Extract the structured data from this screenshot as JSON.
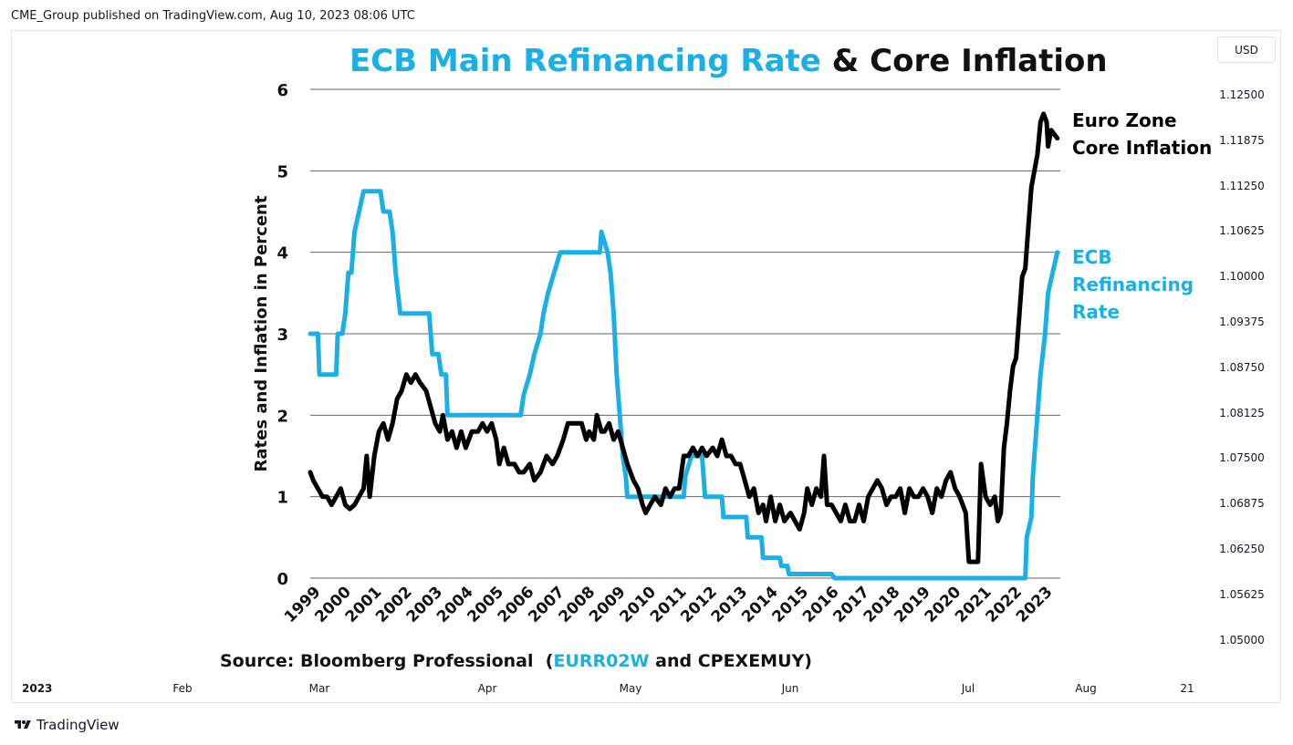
{
  "header": {
    "published_text": "CME_Group published on TradingView.com, Aug 10, 2023 08:06 UTC"
  },
  "currency_button": {
    "label": "USD"
  },
  "price_axis": {
    "labels": [
      "1.12500",
      "1.11875",
      "1.11250",
      "1.10625",
      "1.10000",
      "1.09375",
      "1.08750",
      "1.08125",
      "1.07500",
      "1.06875",
      "1.06250",
      "1.05625",
      "1.05000"
    ]
  },
  "time_axis": {
    "labels": [
      "2023",
      "Feb",
      "Mar",
      "Apr",
      "May",
      "Jun",
      "Jul",
      "Aug",
      "21"
    ]
  },
  "footer": {
    "brand": "TradingView"
  },
  "colors": {
    "ecb": "#1ab0e6",
    "core": "#000000",
    "grid": "#666666"
  },
  "chart_data": {
    "type": "line",
    "title_parts": [
      {
        "text": "ECB Main Refinancing Rate",
        "color": "#1ab0e6"
      },
      {
        "text": " & Core Inflation",
        "color": "#111111"
      }
    ],
    "ylabel": "Rates and Inflation in Percent",
    "ylim": [
      0,
      6
    ],
    "yticks": [
      "0",
      "1",
      "2",
      "3",
      "4",
      "5",
      "6"
    ],
    "x_tick_labels": [
      "1999",
      "2000",
      "2001",
      "2002",
      "2003",
      "2004",
      "2005",
      "2006",
      "2007",
      "2008",
      "2009",
      "2010",
      "2011",
      "2012",
      "2013",
      "2014",
      "2015",
      "2016",
      "2017",
      "2018",
      "2019",
      "2020",
      "2021",
      "2022",
      "2023"
    ],
    "xlim": [
      1999,
      2023.6
    ],
    "grid": "horizontal",
    "source_parts": [
      {
        "text": "Source: Bloomberg Professional  (",
        "color": "#111111"
      },
      {
        "text": "EURR02W",
        "color": "#1ab0e6"
      },
      {
        "text": " and CPEXEMUY)",
        "color": "#111111"
      }
    ],
    "series": [
      {
        "name_lines": [
          "ECB",
          "Refinancing",
          "Rate"
        ],
        "color": "#1ab0e6",
        "points": [
          [
            1999.0,
            3.0
          ],
          [
            1999.25,
            3.0
          ],
          [
            1999.3,
            2.5
          ],
          [
            1999.85,
            2.5
          ],
          [
            1999.9,
            3.0
          ],
          [
            2000.05,
            3.0
          ],
          [
            2000.15,
            3.25
          ],
          [
            2000.25,
            3.75
          ],
          [
            2000.35,
            3.75
          ],
          [
            2000.45,
            4.25
          ],
          [
            2000.6,
            4.5
          ],
          [
            2000.75,
            4.75
          ],
          [
            2001.3,
            4.75
          ],
          [
            2001.4,
            4.5
          ],
          [
            2001.6,
            4.5
          ],
          [
            2001.7,
            4.25
          ],
          [
            2001.8,
            3.75
          ],
          [
            2001.95,
            3.25
          ],
          [
            2002.9,
            3.25
          ],
          [
            2003.0,
            2.75
          ],
          [
            2003.2,
            2.75
          ],
          [
            2003.3,
            2.5
          ],
          [
            2003.45,
            2.5
          ],
          [
            2003.5,
            2.0
          ],
          [
            2005.9,
            2.0
          ],
          [
            2006.0,
            2.25
          ],
          [
            2006.2,
            2.5
          ],
          [
            2006.35,
            2.75
          ],
          [
            2006.55,
            3.0
          ],
          [
            2006.65,
            3.25
          ],
          [
            2006.8,
            3.5
          ],
          [
            2007.0,
            3.75
          ],
          [
            2007.2,
            4.0
          ],
          [
            2008.5,
            4.0
          ],
          [
            2008.55,
            4.25
          ],
          [
            2008.75,
            4.0
          ],
          [
            2008.85,
            3.75
          ],
          [
            2008.95,
            3.25
          ],
          [
            2009.05,
            2.5
          ],
          [
            2009.15,
            2.0
          ],
          [
            2009.25,
            1.5
          ],
          [
            2009.35,
            1.25
          ],
          [
            2009.4,
            1.0
          ],
          [
            2011.25,
            1.0
          ],
          [
            2011.3,
            1.25
          ],
          [
            2011.5,
            1.5
          ],
          [
            2011.85,
            1.5
          ],
          [
            2011.9,
            1.25
          ],
          [
            2011.95,
            1.0
          ],
          [
            2012.5,
            1.0
          ],
          [
            2012.55,
            0.75
          ],
          [
            2013.3,
            0.75
          ],
          [
            2013.35,
            0.5
          ],
          [
            2013.8,
            0.5
          ],
          [
            2013.85,
            0.25
          ],
          [
            2014.4,
            0.25
          ],
          [
            2014.45,
            0.15
          ],
          [
            2014.65,
            0.15
          ],
          [
            2014.7,
            0.05
          ],
          [
            2016.1,
            0.05
          ],
          [
            2016.2,
            0.0
          ],
          [
            2022.45,
            0.0
          ],
          [
            2022.5,
            0.5
          ],
          [
            2022.65,
            0.75
          ],
          [
            2022.7,
            1.25
          ],
          [
            2022.85,
            2.0
          ],
          [
            2022.95,
            2.5
          ],
          [
            2023.1,
            3.0
          ],
          [
            2023.2,
            3.5
          ],
          [
            2023.35,
            3.75
          ],
          [
            2023.5,
            4.0
          ]
        ]
      },
      {
        "name_lines": [
          "Euro Zone",
          "Core Inflation"
        ],
        "color": "#000000",
        "points": [
          [
            1999.0,
            1.3
          ],
          [
            1999.1,
            1.2
          ],
          [
            1999.25,
            1.1
          ],
          [
            1999.4,
            1.0
          ],
          [
            1999.55,
            1.0
          ],
          [
            1999.7,
            0.9
          ],
          [
            1999.85,
            1.0
          ],
          [
            2000.0,
            1.1
          ],
          [
            2000.15,
            0.9
          ],
          [
            2000.3,
            0.85
          ],
          [
            2000.45,
            0.9
          ],
          [
            2000.6,
            1.0
          ],
          [
            2000.75,
            1.1
          ],
          [
            2000.85,
            1.5
          ],
          [
            2000.95,
            1.0
          ],
          [
            2001.1,
            1.5
          ],
          [
            2001.25,
            1.8
          ],
          [
            2001.4,
            1.9
          ],
          [
            2001.55,
            1.7
          ],
          [
            2001.7,
            1.9
          ],
          [
            2001.85,
            2.2
          ],
          [
            2002.0,
            2.3
          ],
          [
            2002.15,
            2.5
          ],
          [
            2002.3,
            2.4
          ],
          [
            2002.45,
            2.5
          ],
          [
            2002.6,
            2.4
          ],
          [
            2002.8,
            2.3
          ],
          [
            2002.95,
            2.1
          ],
          [
            2003.1,
            1.9
          ],
          [
            2003.25,
            1.8
          ],
          [
            2003.35,
            2.0
          ],
          [
            2003.5,
            1.7
          ],
          [
            2003.65,
            1.8
          ],
          [
            2003.8,
            1.6
          ],
          [
            2003.95,
            1.8
          ],
          [
            2004.1,
            1.6
          ],
          [
            2004.3,
            1.8
          ],
          [
            2004.5,
            1.8
          ],
          [
            2004.65,
            1.9
          ],
          [
            2004.8,
            1.8
          ],
          [
            2004.95,
            1.9
          ],
          [
            2005.1,
            1.7
          ],
          [
            2005.2,
            1.4
          ],
          [
            2005.35,
            1.6
          ],
          [
            2005.5,
            1.4
          ],
          [
            2005.7,
            1.4
          ],
          [
            2005.85,
            1.3
          ],
          [
            2006.0,
            1.3
          ],
          [
            2006.2,
            1.4
          ],
          [
            2006.35,
            1.2
          ],
          [
            2006.55,
            1.3
          ],
          [
            2006.75,
            1.5
          ],
          [
            2006.95,
            1.4
          ],
          [
            2007.1,
            1.5
          ],
          [
            2007.3,
            1.7
          ],
          [
            2007.45,
            1.9
          ],
          [
            2007.7,
            1.9
          ],
          [
            2007.9,
            1.9
          ],
          [
            2008.05,
            1.7
          ],
          [
            2008.15,
            1.8
          ],
          [
            2008.3,
            1.7
          ],
          [
            2008.4,
            2.0
          ],
          [
            2008.55,
            1.8
          ],
          [
            2008.65,
            1.8
          ],
          [
            2008.8,
            1.9
          ],
          [
            2008.95,
            1.7
          ],
          [
            2009.1,
            1.8
          ],
          [
            2009.25,
            1.6
          ],
          [
            2009.4,
            1.4
          ],
          [
            2009.6,
            1.2
          ],
          [
            2009.75,
            1.1
          ],
          [
            2009.9,
            0.9
          ],
          [
            2010.0,
            0.8
          ],
          [
            2010.15,
            0.9
          ],
          [
            2010.3,
            1.0
          ],
          [
            2010.5,
            0.9
          ],
          [
            2010.65,
            1.1
          ],
          [
            2010.8,
            1.0
          ],
          [
            2010.95,
            1.1
          ],
          [
            2011.1,
            1.1
          ],
          [
            2011.25,
            1.5
          ],
          [
            2011.4,
            1.5
          ],
          [
            2011.55,
            1.6
          ],
          [
            2011.7,
            1.5
          ],
          [
            2011.85,
            1.6
          ],
          [
            2012.0,
            1.5
          ],
          [
            2012.2,
            1.6
          ],
          [
            2012.35,
            1.5
          ],
          [
            2012.5,
            1.7
          ],
          [
            2012.65,
            1.5
          ],
          [
            2012.8,
            1.5
          ],
          [
            2012.95,
            1.4
          ],
          [
            2013.1,
            1.4
          ],
          [
            2013.25,
            1.2
          ],
          [
            2013.4,
            1.0
          ],
          [
            2013.55,
            1.1
          ],
          [
            2013.7,
            0.8
          ],
          [
            2013.85,
            0.9
          ],
          [
            2013.95,
            0.7
          ],
          [
            2014.1,
            1.0
          ],
          [
            2014.25,
            0.7
          ],
          [
            2014.4,
            0.9
          ],
          [
            2014.55,
            0.7
          ],
          [
            2014.75,
            0.8
          ],
          [
            2014.9,
            0.7
          ],
          [
            2015.05,
            0.6
          ],
          [
            2015.2,
            0.8
          ],
          [
            2015.3,
            1.1
          ],
          [
            2015.45,
            0.9
          ],
          [
            2015.6,
            1.1
          ],
          [
            2015.75,
            1.0
          ],
          [
            2015.85,
            1.5
          ],
          [
            2015.95,
            0.9
          ],
          [
            2016.1,
            0.9
          ],
          [
            2016.25,
            0.8
          ],
          [
            2016.4,
            0.7
          ],
          [
            2016.55,
            0.9
          ],
          [
            2016.7,
            0.7
          ],
          [
            2016.85,
            0.7
          ],
          [
            2017.0,
            0.9
          ],
          [
            2017.15,
            0.7
          ],
          [
            2017.3,
            1.0
          ],
          [
            2017.45,
            1.1
          ],
          [
            2017.6,
            1.2
          ],
          [
            2017.75,
            1.1
          ],
          [
            2017.9,
            0.9
          ],
          [
            2018.05,
            1.0
          ],
          [
            2018.2,
            1.0
          ],
          [
            2018.35,
            1.1
          ],
          [
            2018.5,
            0.8
          ],
          [
            2018.65,
            1.1
          ],
          [
            2018.8,
            1.0
          ],
          [
            2018.95,
            1.0
          ],
          [
            2019.1,
            1.1
          ],
          [
            2019.25,
            1.0
          ],
          [
            2019.4,
            0.8
          ],
          [
            2019.55,
            1.1
          ],
          [
            2019.7,
            1.0
          ],
          [
            2019.85,
            1.2
          ],
          [
            2020.0,
            1.3
          ],
          [
            2020.15,
            1.1
          ],
          [
            2020.3,
            1.0
          ],
          [
            2020.5,
            0.8
          ],
          [
            2020.55,
            0.5
          ],
          [
            2020.6,
            0.2
          ],
          [
            2020.9,
            0.2
          ],
          [
            2021.0,
            1.4
          ],
          [
            2021.15,
            1.0
          ],
          [
            2021.3,
            0.9
          ],
          [
            2021.45,
            1.0
          ],
          [
            2021.55,
            0.7
          ],
          [
            2021.65,
            0.8
          ],
          [
            2021.75,
            1.6
          ],
          [
            2021.85,
            1.9
          ],
          [
            2021.95,
            2.3
          ],
          [
            2022.05,
            2.6
          ],
          [
            2022.15,
            2.7
          ],
          [
            2022.25,
            3.2
          ],
          [
            2022.35,
            3.7
          ],
          [
            2022.45,
            3.8
          ],
          [
            2022.55,
            4.3
          ],
          [
            2022.65,
            4.8
          ],
          [
            2022.75,
            5.0
          ],
          [
            2022.85,
            5.2
          ],
          [
            2022.95,
            5.6
          ],
          [
            2023.05,
            5.7
          ],
          [
            2023.15,
            5.6
          ],
          [
            2023.2,
            5.3
          ],
          [
            2023.3,
            5.5
          ],
          [
            2023.5,
            5.4
          ]
        ]
      }
    ]
  }
}
